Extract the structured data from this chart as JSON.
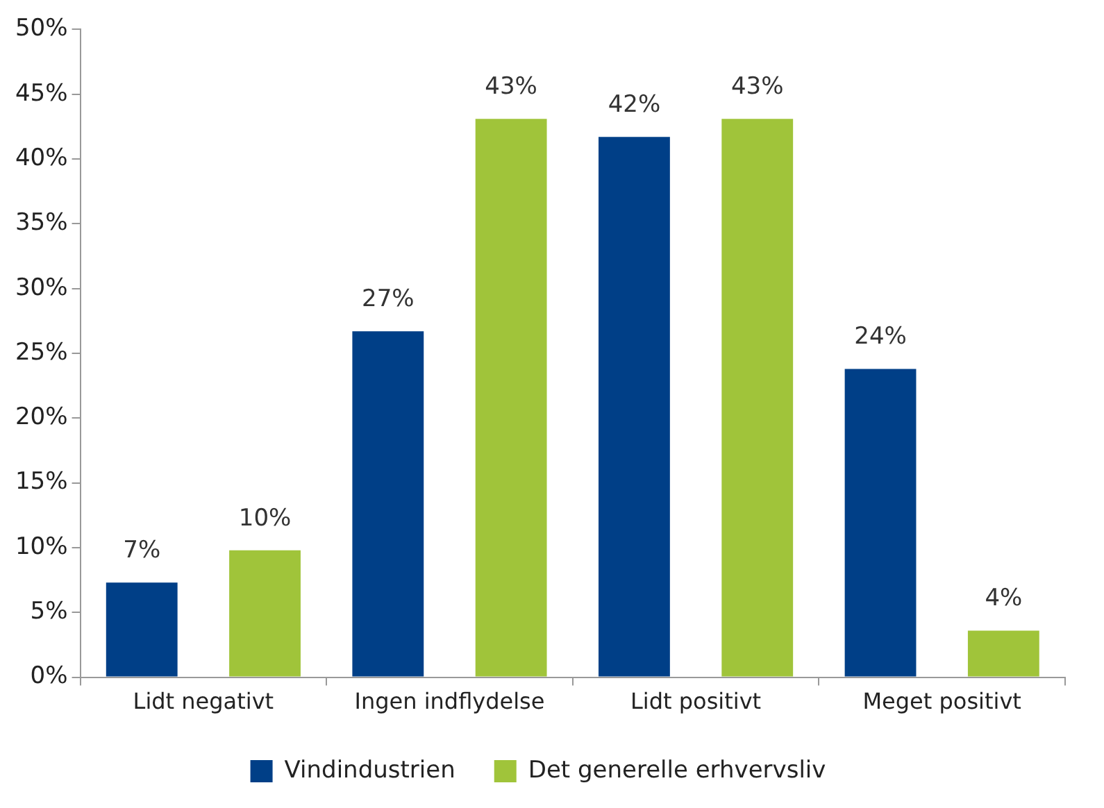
{
  "chart_data": {
    "type": "bar",
    "categories": [
      "Lidt negativt",
      "Ingen indflydelse",
      "Lidt positivt",
      "Meget positivt"
    ],
    "series": [
      {
        "name": "Vindindustrien",
        "color": "#003f87",
        "values": [
          7.3,
          26.7,
          41.7,
          23.8
        ],
        "value_labels": [
          "7%",
          "27%",
          "42%",
          "24%"
        ]
      },
      {
        "name": "Det generelle erhvervsliv",
        "color": "#a0c43a",
        "values": [
          9.8,
          43.1,
          43.1,
          3.6
        ],
        "value_labels": [
          "10%",
          "43%",
          "43%",
          "4%"
        ]
      }
    ],
    "ylim": [
      0,
      50
    ],
    "yticks": [
      {
        "value": 0,
        "label": "0%"
      },
      {
        "value": 5,
        "label": "5%"
      },
      {
        "value": 10,
        "label": "10%"
      },
      {
        "value": 15,
        "label": "15%"
      },
      {
        "value": 20,
        "label": "20%"
      },
      {
        "value": 25,
        "label": "25%"
      },
      {
        "value": 30,
        "label": "30%"
      },
      {
        "value": 35,
        "label": "35%"
      },
      {
        "value": 40,
        "label": "40%"
      },
      {
        "value": 45,
        "label": "45%"
      },
      {
        "value": 50,
        "label": "50%"
      }
    ],
    "grid": false,
    "legend": "bottom"
  }
}
